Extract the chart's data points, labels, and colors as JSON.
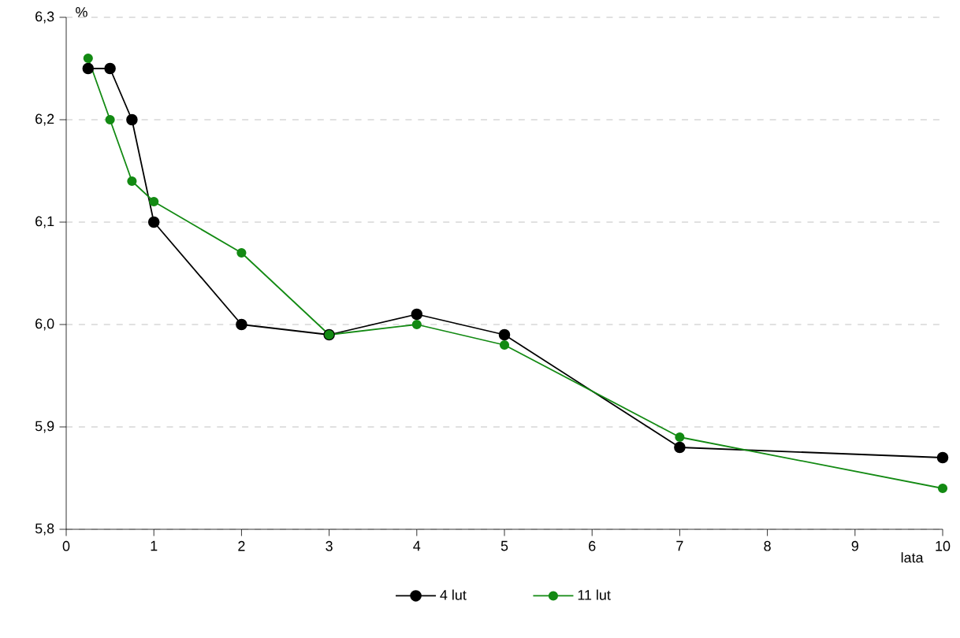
{
  "chart_data": {
    "type": "line",
    "ylabel": "%",
    "xlabel": "lata",
    "xlim": [
      0,
      10
    ],
    "xticks": [
      0,
      1,
      2,
      3,
      4,
      5,
      6,
      7,
      8,
      9,
      10
    ],
    "ylim": [
      5.8,
      6.3
    ],
    "yticks": [
      {
        "value": 5.8,
        "label": "5,8"
      },
      {
        "value": 5.9,
        "label": "5,9"
      },
      {
        "value": 6.0,
        "label": "6,0"
      },
      {
        "value": 6.1,
        "label": "6,1"
      },
      {
        "value": 6.2,
        "label": "6,2"
      },
      {
        "value": 6.3,
        "label": "6,3"
      }
    ],
    "grid": "y",
    "legend": "bottom",
    "marker": "circle",
    "line_style": "solid",
    "series": [
      {
        "name": "4 lut",
        "color": "#000000",
        "x": [
          0.25,
          0.5,
          0.75,
          1,
          2,
          3,
          4,
          5,
          7,
          10
        ],
        "values": [
          6.25,
          6.25,
          6.2,
          6.1,
          6.0,
          5.99,
          6.01,
          5.99,
          5.88,
          5.87
        ]
      },
      {
        "name": "11 lut",
        "color": "#138a13",
        "x": [
          0.25,
          0.5,
          0.75,
          1,
          2,
          3,
          4,
          5,
          7,
          10
        ],
        "values": [
          6.26,
          6.2,
          6.14,
          6.12,
          6.07,
          5.99,
          6.0,
          5.98,
          5.89,
          5.84
        ]
      }
    ]
  }
}
